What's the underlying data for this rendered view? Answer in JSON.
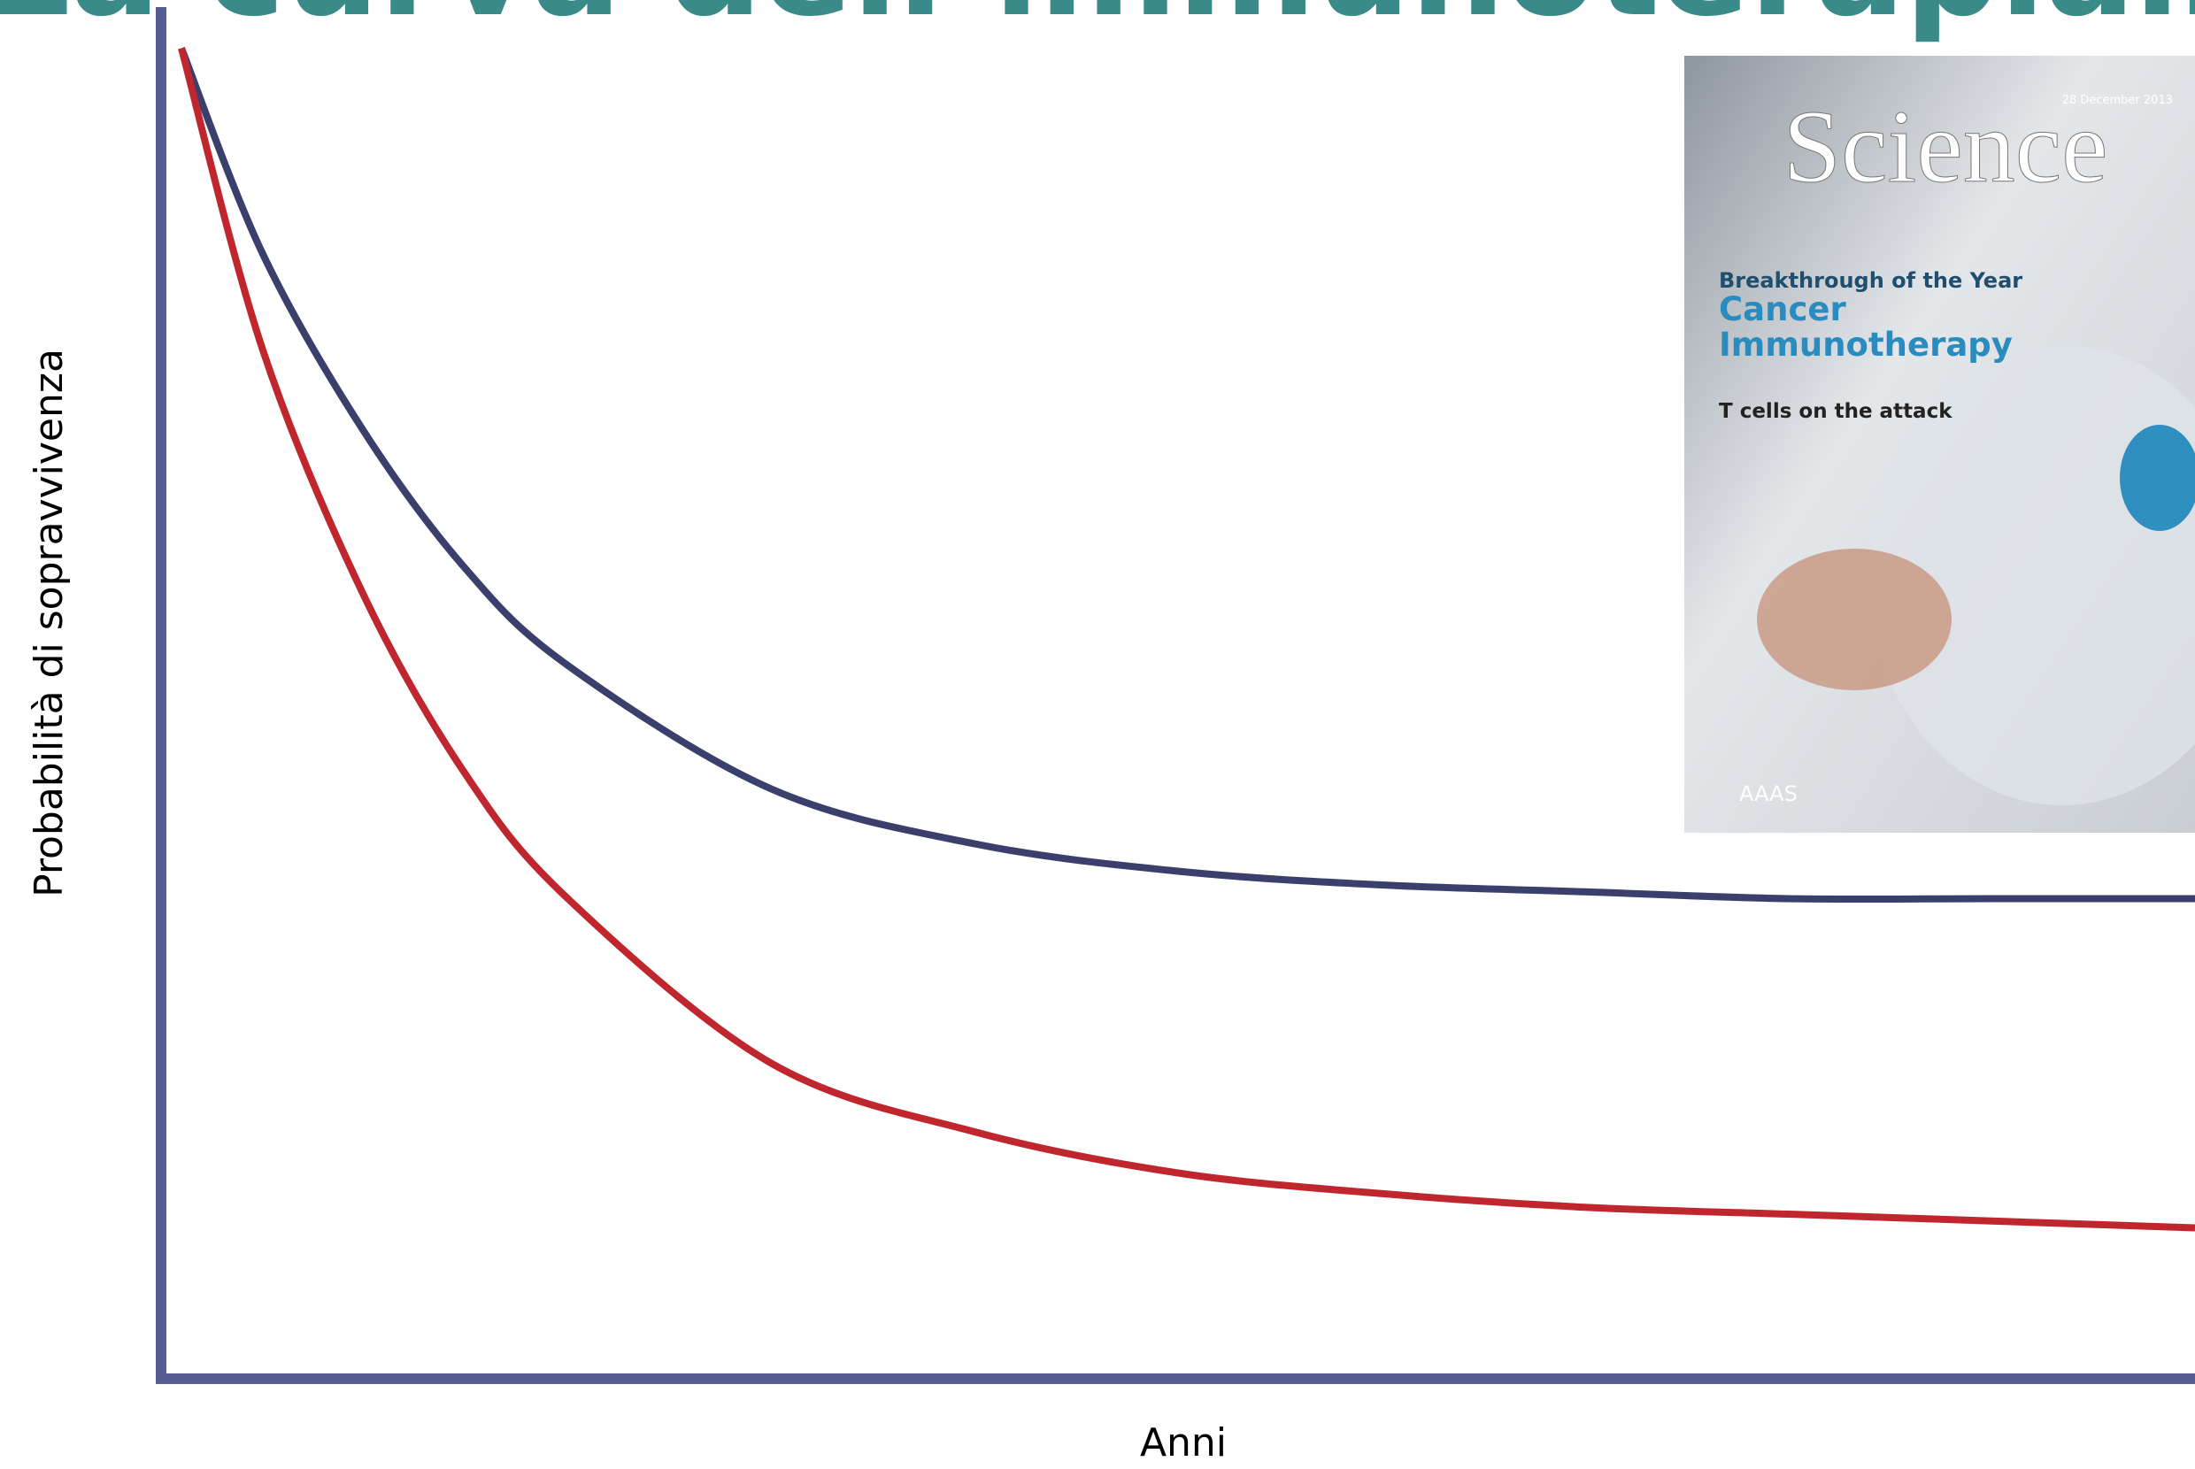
{
  "title": "La curva dell’immunoterapia…",
  "chart_data": {
    "type": "line",
    "x_label": "Anni",
    "y_label": "Probabilità di sopravvivenza",
    "x": [
      0.1,
      0.5,
      1,
      1.5,
      2,
      3,
      4,
      5,
      6,
      7,
      8,
      9,
      10
    ],
    "series": [
      {
        "color": "#3b3f6b",
        "values": [
          0.97,
          0.82,
          0.69,
          0.59,
          0.52,
          0.43,
          0.39,
          0.37,
          0.36,
          0.355,
          0.35,
          0.35,
          0.35
        ]
      },
      {
        "color": "#c0262d",
        "values": [
          0.97,
          0.75,
          0.57,
          0.44,
          0.35,
          0.23,
          0.18,
          0.15,
          0.135,
          0.125,
          0.12,
          0.115,
          0.11
        ]
      }
    ],
    "xlim": [
      0,
      10
    ],
    "ylim": [
      0,
      1
    ],
    "axis_color": "#575c93"
  },
  "cover": {
    "date": "28 December 2013",
    "masthead": "Science",
    "kicker": "Breakthrough of the Year",
    "headline": "Cancer Immunotherapy",
    "subhead": "T cells on the attack",
    "publisher": "AAAS"
  }
}
